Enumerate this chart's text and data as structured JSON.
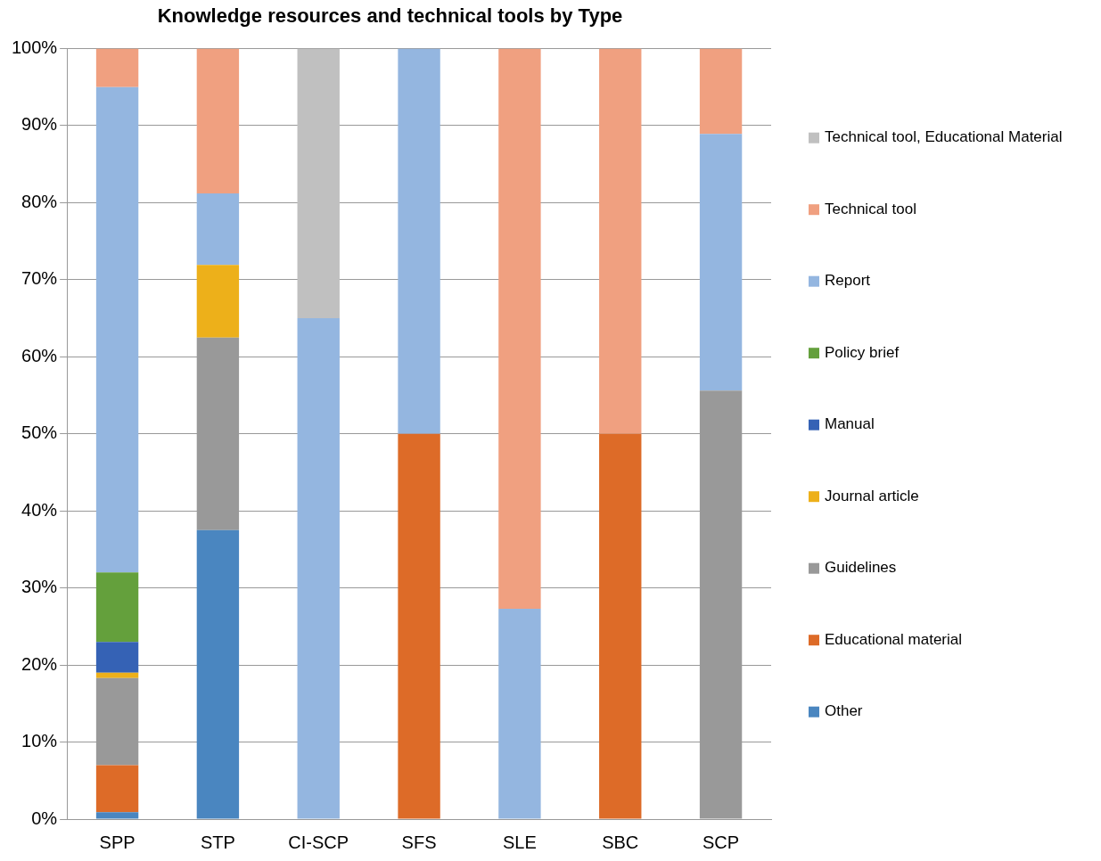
{
  "chart_data": {
    "type": "bar",
    "title": "Knowledge resources and technical tools by Type",
    "stacked": true,
    "categories": [
      "SPP",
      "STP",
      "CI-SCP",
      "SFS",
      "SLE",
      "SBC",
      "SCP"
    ],
    "ylim": [
      0,
      100
    ],
    "yticks": [
      {
        "value": 0,
        "label": "0%"
      },
      {
        "value": 10,
        "label": "10%"
      },
      {
        "value": 20,
        "label": "20%"
      },
      {
        "value": 30,
        "label": "30%"
      },
      {
        "value": 40,
        "label": "40%"
      },
      {
        "value": 50,
        "label": "50%"
      },
      {
        "value": 60,
        "label": "60%"
      },
      {
        "value": 70,
        "label": "70%"
      },
      {
        "value": 80,
        "label": "80%"
      },
      {
        "value": 90,
        "label": "90%"
      },
      {
        "value": 100,
        "label": "100%"
      }
    ],
    "grid": "y",
    "legend": "right",
    "series": [
      {
        "name": "Other",
        "color": "#4a86c0",
        "values": [
          0.9,
          37.5,
          0,
          0,
          0,
          0,
          0
        ]
      },
      {
        "name": "Educational material",
        "color": "#dd6b28",
        "values": [
          6.1,
          0,
          0,
          50,
          0,
          50,
          0
        ]
      },
      {
        "name": "Guidelines",
        "color": "#999999",
        "values": [
          11.3,
          25,
          0,
          0,
          0,
          0,
          55.6
        ]
      },
      {
        "name": "Journal article",
        "color": "#edb01a",
        "values": [
          0.7,
          9.4,
          0,
          0,
          0,
          0,
          0
        ]
      },
      {
        "name": "Manual",
        "color": "#3562b5",
        "values": [
          4,
          0,
          0,
          0,
          0,
          0,
          0
        ]
      },
      {
        "name": "Policy brief",
        "color": "#64a03c",
        "values": [
          9,
          0,
          0,
          0,
          0,
          0,
          0
        ]
      },
      {
        "name": "Report",
        "color": "#94b6e0",
        "values": [
          63,
          9.3,
          65,
          50,
          27.3,
          0,
          33.3
        ]
      },
      {
        "name": "Technical tool",
        "color": "#f0a080",
        "values": [
          5,
          18.8,
          0,
          0,
          72.7,
          50,
          11.1
        ]
      },
      {
        "name": "Technical tool, Educational Material",
        "color": "#c0c0c0",
        "values": [
          0,
          0,
          35,
          0,
          0,
          0,
          0
        ]
      }
    ]
  }
}
